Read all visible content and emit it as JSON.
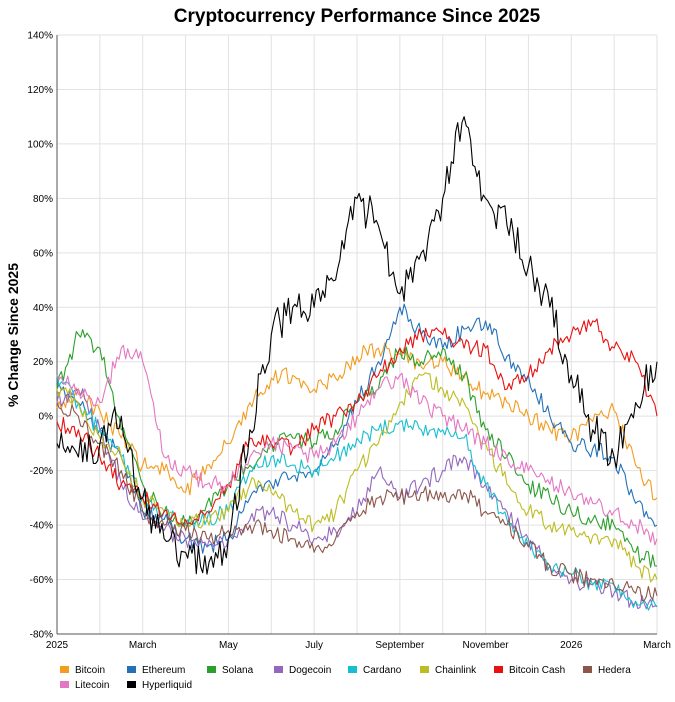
{
  "chart_data": {
    "type": "line",
    "title": "Cryptocurrency Performance Since 2025",
    "xlabel": "",
    "ylabel": "% Change Since 2025",
    "ylim": [
      -80,
      140
    ],
    "yticks": [
      -80,
      -60,
      -40,
      -20,
      0,
      20,
      40,
      60,
      80,
      100,
      120,
      140
    ],
    "ytick_suffix": "%",
    "x_tick_labels": [
      "2025",
      "March",
      "May",
      "July",
      "September",
      "November",
      "2026",
      "March"
    ],
    "x_tick_months": [
      0,
      2,
      4,
      6,
      8,
      10,
      12,
      14
    ],
    "x_range_months": [
      0,
      14
    ],
    "legend_position": "bottom",
    "series": [
      {
        "name": "Bitcoin",
        "color": "#f39c1f",
        "points": [
          [
            0,
            3
          ],
          [
            0.5,
            8
          ],
          [
            1,
            2
          ],
          [
            1.5,
            -8
          ],
          [
            2,
            -18
          ],
          [
            2.5,
            -20
          ],
          [
            3,
            -28
          ],
          [
            3.5,
            -18
          ],
          [
            4,
            -10
          ],
          [
            4.5,
            5
          ],
          [
            5,
            14
          ],
          [
            5.5,
            15
          ],
          [
            6,
            10
          ],
          [
            6.5,
            14
          ],
          [
            7,
            22
          ],
          [
            7.5,
            25
          ],
          [
            8,
            23
          ],
          [
            8.5,
            18
          ],
          [
            9,
            20
          ],
          [
            9.5,
            14
          ],
          [
            10,
            8
          ],
          [
            10.5,
            5
          ],
          [
            11,
            0
          ],
          [
            11.5,
            -5
          ],
          [
            12,
            -8
          ],
          [
            12.5,
            -2
          ],
          [
            13,
            2
          ],
          [
            13.5,
            -18
          ],
          [
            14,
            -30
          ]
        ]
      },
      {
        "name": "Ethereum",
        "color": "#2471b8",
        "points": [
          [
            0,
            10
          ],
          [
            0.5,
            5
          ],
          [
            1,
            -5
          ],
          [
            1.5,
            -15
          ],
          [
            2,
            -35
          ],
          [
            2.5,
            -38
          ],
          [
            3,
            -45
          ],
          [
            3.5,
            -48
          ],
          [
            4,
            -45
          ],
          [
            4.5,
            -30
          ],
          [
            5,
            -25
          ],
          [
            5.5,
            -22
          ],
          [
            6,
            -20
          ],
          [
            6.5,
            -10
          ],
          [
            7,
            5
          ],
          [
            7.5,
            20
          ],
          [
            8,
            40
          ],
          [
            8.5,
            30
          ],
          [
            9,
            25
          ],
          [
            9.5,
            32
          ],
          [
            10,
            35
          ],
          [
            10.5,
            22
          ],
          [
            11,
            15
          ],
          [
            11.5,
            0
          ],
          [
            12,
            -10
          ],
          [
            12.5,
            -12
          ],
          [
            13,
            -15
          ],
          [
            13.5,
            -32
          ],
          [
            14,
            -40
          ]
        ]
      },
      {
        "name": "Solana",
        "color": "#2ca02c",
        "points": [
          [
            0,
            10
          ],
          [
            0.5,
            30
          ],
          [
            1,
            25
          ],
          [
            1.5,
            -5
          ],
          [
            2,
            -25
          ],
          [
            2.5,
            -35
          ],
          [
            3,
            -40
          ],
          [
            3.5,
            -32
          ],
          [
            4,
            -25
          ],
          [
            4.5,
            -18
          ],
          [
            5,
            -10
          ],
          [
            5.5,
            -8
          ],
          [
            6,
            -10
          ],
          [
            6.5,
            -5
          ],
          [
            7,
            5
          ],
          [
            7.5,
            10
          ],
          [
            8,
            25
          ],
          [
            8.5,
            20
          ],
          [
            9,
            25
          ],
          [
            9.5,
            15
          ],
          [
            10,
            -5
          ],
          [
            10.5,
            -15
          ],
          [
            11,
            -25
          ],
          [
            11.5,
            -30
          ],
          [
            12,
            -35
          ],
          [
            12.5,
            -38
          ],
          [
            13,
            -40
          ],
          [
            13.5,
            -50
          ],
          [
            14,
            -55
          ]
        ]
      },
      {
        "name": "Dogecoin",
        "color": "#9467bd",
        "points": [
          [
            0,
            5
          ],
          [
            0.5,
            10
          ],
          [
            1,
            -5
          ],
          [
            1.5,
            -25
          ],
          [
            2,
            -38
          ],
          [
            2.5,
            -42
          ],
          [
            3,
            -45
          ],
          [
            3.5,
            -48
          ],
          [
            4,
            -45
          ],
          [
            4.5,
            -38
          ],
          [
            5,
            -35
          ],
          [
            5.5,
            -40
          ],
          [
            6,
            -45
          ],
          [
            6.5,
            -42
          ],
          [
            7,
            -35
          ],
          [
            7.5,
            -20
          ],
          [
            8,
            -30
          ],
          [
            8.5,
            -25
          ],
          [
            9,
            -20
          ],
          [
            9.5,
            -15
          ],
          [
            10,
            -25
          ],
          [
            10.5,
            -35
          ],
          [
            11,
            -45
          ],
          [
            11.5,
            -55
          ],
          [
            12,
            -60
          ],
          [
            12.5,
            -62
          ],
          [
            13,
            -65
          ],
          [
            13.5,
            -68
          ],
          [
            14,
            -70
          ]
        ]
      },
      {
        "name": "Cardano",
        "color": "#17becf",
        "points": [
          [
            0,
            15
          ],
          [
            0.5,
            5
          ],
          [
            1,
            -5
          ],
          [
            1.5,
            -15
          ],
          [
            2,
            -30
          ],
          [
            2.5,
            -35
          ],
          [
            3,
            -40
          ],
          [
            3.5,
            -38
          ],
          [
            4,
            -35
          ],
          [
            4.5,
            -20
          ],
          [
            5,
            -15
          ],
          [
            5.5,
            -18
          ],
          [
            6,
            -20
          ],
          [
            6.5,
            -15
          ],
          [
            7,
            -8
          ],
          [
            7.5,
            -5
          ],
          [
            8,
            -2
          ],
          [
            8.5,
            -5
          ],
          [
            9,
            -5
          ],
          [
            9.5,
            -8
          ],
          [
            10,
            -25
          ],
          [
            10.5,
            -38
          ],
          [
            11,
            -48
          ],
          [
            11.5,
            -55
          ],
          [
            12,
            -58
          ],
          [
            12.5,
            -62
          ],
          [
            13,
            -62
          ],
          [
            13.5,
            -68
          ],
          [
            14,
            -70
          ]
        ]
      },
      {
        "name": "Chainlink",
        "color": "#bcbd22",
        "points": [
          [
            0,
            10
          ],
          [
            0.5,
            5
          ],
          [
            1,
            -8
          ],
          [
            1.5,
            -15
          ],
          [
            2,
            -30
          ],
          [
            2.5,
            -35
          ],
          [
            3,
            -40
          ],
          [
            3.5,
            -38
          ],
          [
            4,
            -35
          ],
          [
            4.5,
            -25
          ],
          [
            5,
            -28
          ],
          [
            5.5,
            -35
          ],
          [
            6,
            -40
          ],
          [
            6.5,
            -35
          ],
          [
            7,
            -20
          ],
          [
            7.5,
            -10
          ],
          [
            8,
            5
          ],
          [
            8.5,
            15
          ],
          [
            9,
            10
          ],
          [
            9.5,
            5
          ],
          [
            10,
            -10
          ],
          [
            10.5,
            -25
          ],
          [
            11,
            -35
          ],
          [
            11.5,
            -40
          ],
          [
            12,
            -42
          ],
          [
            12.5,
            -44
          ],
          [
            13,
            -45
          ],
          [
            13.5,
            -55
          ],
          [
            14,
            -60
          ]
        ]
      },
      {
        "name": "Bitcoin Cash",
        "color": "#e8110f",
        "points": [
          [
            0,
            -2
          ],
          [
            0.5,
            -5
          ],
          [
            1,
            -15
          ],
          [
            1.5,
            -25
          ],
          [
            2,
            -30
          ],
          [
            2.5,
            -35
          ],
          [
            3,
            -38
          ],
          [
            3.5,
            -35
          ],
          [
            4,
            -25
          ],
          [
            4.5,
            -8
          ],
          [
            5,
            -10
          ],
          [
            5.5,
            -12
          ],
          [
            6,
            -5
          ],
          [
            6.5,
            0
          ],
          [
            7,
            5
          ],
          [
            7.5,
            15
          ],
          [
            8,
            25
          ],
          [
            8.5,
            30
          ],
          [
            9,
            30
          ],
          [
            9.5,
            25
          ],
          [
            10,
            25
          ],
          [
            10.5,
            10
          ],
          [
            11,
            15
          ],
          [
            11.5,
            25
          ],
          [
            12,
            30
          ],
          [
            12.5,
            35
          ],
          [
            13,
            25
          ],
          [
            13.5,
            20
          ],
          [
            14,
            0
          ]
        ]
      },
      {
        "name": "Hedera",
        "color": "#8c564b",
        "points": [
          [
            0,
            5
          ],
          [
            0.5,
            0
          ],
          [
            1,
            -10
          ],
          [
            1.5,
            -20
          ],
          [
            2,
            -35
          ],
          [
            2.5,
            -40
          ],
          [
            3,
            -42
          ],
          [
            3.5,
            -45
          ],
          [
            4,
            -42
          ],
          [
            4.5,
            -40
          ],
          [
            5,
            -42
          ],
          [
            5.5,
            -45
          ],
          [
            6,
            -50
          ],
          [
            6.5,
            -45
          ],
          [
            7,
            -35
          ],
          [
            7.5,
            -30
          ],
          [
            8,
            -30
          ],
          [
            8.5,
            -28
          ],
          [
            9,
            -30
          ],
          [
            9.5,
            -28
          ],
          [
            10,
            -35
          ],
          [
            10.5,
            -40
          ],
          [
            11,
            -48
          ],
          [
            11.5,
            -55
          ],
          [
            12,
            -58
          ],
          [
            12.5,
            -60
          ],
          [
            13,
            -62
          ],
          [
            13.5,
            -65
          ],
          [
            14,
            -66
          ]
        ]
      },
      {
        "name": "Litecoin",
        "color": "#e377c2",
        "points": [
          [
            0,
            15
          ],
          [
            0.5,
            10
          ],
          [
            1,
            5
          ],
          [
            1.5,
            25
          ],
          [
            2,
            20
          ],
          [
            2.5,
            -15
          ],
          [
            3,
            -20
          ],
          [
            3.5,
            -25
          ],
          [
            4,
            -25
          ],
          [
            4.5,
            -15
          ],
          [
            5,
            -10
          ],
          [
            5.5,
            -12
          ],
          [
            6,
            -15
          ],
          [
            6.5,
            -10
          ],
          [
            7,
            0
          ],
          [
            7.5,
            10
          ],
          [
            8,
            15
          ],
          [
            8.5,
            5
          ],
          [
            9,
            0
          ],
          [
            9.5,
            -5
          ],
          [
            10,
            -10
          ],
          [
            10.5,
            -15
          ],
          [
            11,
            -20
          ],
          [
            11.5,
            -25
          ],
          [
            12,
            -28
          ],
          [
            12.5,
            -32
          ],
          [
            13,
            -35
          ],
          [
            13.5,
            -40
          ],
          [
            14,
            -45
          ]
        ]
      },
      {
        "name": "Hyperliquid",
        "color": "#000000",
        "points": [
          [
            0,
            -10
          ],
          [
            0.5,
            -15
          ],
          [
            1,
            -10
          ],
          [
            1.5,
            0
          ],
          [
            2,
            -30
          ],
          [
            2.5,
            -45
          ],
          [
            3,
            -50
          ],
          [
            3.5,
            -58
          ],
          [
            4,
            -45
          ],
          [
            4.5,
            -5
          ],
          [
            5,
            30
          ],
          [
            5.5,
            40
          ],
          [
            6,
            40
          ],
          [
            6.5,
            50
          ],
          [
            7,
            80
          ],
          [
            7.5,
            70
          ],
          [
            8,
            45
          ],
          [
            8.5,
            60
          ],
          [
            9,
            80
          ],
          [
            9.5,
            110
          ],
          [
            10,
            80
          ],
          [
            10.5,
            70
          ],
          [
            11,
            55
          ],
          [
            11.5,
            40
          ],
          [
            12,
            15
          ],
          [
            12.5,
            -5
          ],
          [
            13,
            -15
          ],
          [
            13.5,
            5
          ],
          [
            14,
            20
          ]
        ]
      }
    ]
  }
}
